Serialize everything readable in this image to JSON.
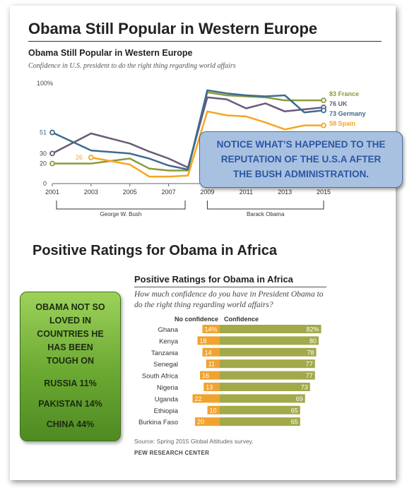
{
  "page": {
    "title": "Obama Still Popular in Western Europe",
    "africa_title": "Positive Ratings for Obama in Africa"
  },
  "europe_chart": {
    "title": "Obama Still Popular in Western Europe",
    "subtitle": "Confidence in U.S. president to do the right thing regarding world affairs",
    "chart_data": {
      "type": "line",
      "ylim": [
        0,
        100
      ],
      "y_ticks": [
        "100%",
        "30",
        "20",
        "0"
      ],
      "x": [
        2001,
        2003,
        2005,
        2006,
        2007,
        2008,
        2009,
        2010,
        2011,
        2012,
        2013,
        2014,
        2015
      ],
      "x_tick_labels": [
        "2001",
        "2003",
        "2005",
        "2007",
        "2009",
        "2011",
        "2013",
        "2015"
      ],
      "series": [
        {
          "name": "France",
          "label": "83 France",
          "color": "#8c9a3d",
          "values": [
            20,
            20,
            25,
            15,
            13,
            13,
            91,
            88,
            87,
            86,
            83,
            83,
            83
          ]
        },
        {
          "name": "UK",
          "label": "76 UK",
          "color": "#6a5a79",
          "values": [
            30,
            50,
            40,
            32,
            25,
            16,
            86,
            84,
            75,
            80,
            72,
            74,
            76
          ]
        },
        {
          "name": "Germany",
          "label": "73 Germany",
          "color": "#3e6b8f",
          "values": [
            51,
            33,
            30,
            25,
            18,
            14,
            93,
            90,
            88,
            87,
            88,
            71,
            73
          ]
        },
        {
          "name": "Spain",
          "label": "58 Spain",
          "color": "#f5a623",
          "values": [
            null,
            26,
            19,
            7,
            7,
            8,
            72,
            68,
            67,
            61,
            54,
            58,
            58
          ]
        }
      ],
      "value_labels": [
        "51",
        "26"
      ],
      "eras": [
        {
          "label": "George W. Bush"
        },
        {
          "label": "Barack Obama"
        }
      ]
    }
  },
  "callout": {
    "lines": [
      "NOTICE WHAT’S HAPPENED TO THE",
      "REPUTATION OF THE U.S.A AFTER",
      "THE BUSH ADMINISTRATION."
    ]
  },
  "africa_chart": {
    "title": "Positive Ratings for Obama in Africa",
    "question": "How much confidence do you have in President Obama to do the right thing regarding world affairs?",
    "col_no": "No confidence",
    "col_yes": "Confidence",
    "source": "Source: Spring 2015 Global Attitudes survey.",
    "credit": "PEW RESEARCH CENTER",
    "chart_data": {
      "type": "bar",
      "categories": [
        "Ghana",
        "Kenya",
        "Tanzania",
        "Senegal",
        "South Africa",
        "Nigeria",
        "Uganda",
        "Ethiopia",
        "Burkina Faso"
      ],
      "series": [
        {
          "name": "No confidence",
          "color": "#f0a32f",
          "values": [
            14,
            18,
            14,
            11,
            16,
            13,
            22,
            10,
            20
          ],
          "labels": [
            "14%",
            "18",
            "14",
            "11",
            "16",
            "13",
            "22",
            "10",
            "20"
          ]
        },
        {
          "name": "Confidence",
          "color": "#a1a94a",
          "values": [
            82,
            80,
            78,
            77,
            77,
            73,
            69,
            65,
            65
          ],
          "labels": [
            "82%",
            "80",
            "78",
            "77",
            "77",
            "73",
            "69",
            "65",
            "65"
          ]
        }
      ]
    }
  },
  "green_box": {
    "head_lines": [
      "OBAMA NOT SO",
      "LOVED IN",
      "COUNTRIES HE",
      "HAS BEEN",
      "TOUGH ON"
    ],
    "items": [
      "RUSSIA 11%",
      "PAKISTAN 14%",
      "CHINA 44%"
    ]
  }
}
